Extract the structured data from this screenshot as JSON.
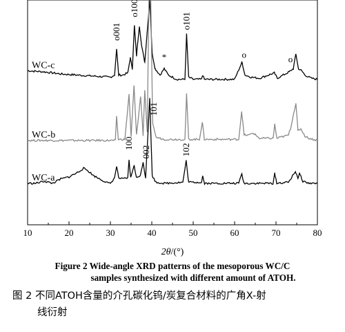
{
  "chart_data": {
    "type": "line",
    "x_axis": {
      "label_italic": "2θ",
      "label_unit": "/(°)",
      "range": [
        10,
        80
      ],
      "ticks": [
        10,
        20,
        30,
        40,
        50,
        60,
        70,
        80
      ]
    },
    "series": [
      {
        "name": "WC-c",
        "color": "#000000",
        "baseline": 6.2,
        "points": [
          [
            10,
            0.5
          ],
          [
            14,
            0.45
          ],
          [
            18,
            0.35
          ],
          [
            22,
            0.3
          ],
          [
            26,
            0.25
          ],
          [
            30,
            0.2
          ],
          [
            31,
            0.3
          ],
          [
            31.5,
            1.5
          ],
          [
            32,
            0.3
          ],
          [
            33,
            0.3
          ],
          [
            34.2,
            0.4
          ],
          [
            34.8,
            1.1
          ],
          [
            35.3,
            0.6
          ],
          [
            35.8,
            2.6
          ],
          [
            36.3,
            1.2
          ],
          [
            37,
            2.6
          ],
          [
            37.6,
            1.6
          ],
          [
            38.3,
            0.9
          ],
          [
            39.5,
            3.8
          ],
          [
            40.1,
            1.3
          ],
          [
            40.8,
            0.6
          ],
          [
            42,
            0.3
          ],
          [
            43,
            0.6
          ],
          [
            44,
            0.3
          ],
          [
            46,
            0.1
          ],
          [
            48,
            0.1
          ],
          [
            48.4,
            2.2
          ],
          [
            48.9,
            0.2
          ],
          [
            50,
            0.1
          ],
          [
            52,
            0.1
          ],
          [
            52.3,
            0.3
          ],
          [
            52.7,
            0.1
          ],
          [
            60,
            0.1
          ],
          [
            61.8,
            0.9
          ],
          [
            62.5,
            0.3
          ],
          [
            64,
            0.2
          ],
          [
            66,
            0.15
          ],
          [
            69.6,
            0.4
          ],
          [
            70.3,
            0.15
          ],
          [
            73.2,
            0.45
          ],
          [
            74.2,
            0.6
          ],
          [
            74.8,
            1.3
          ],
          [
            75.4,
            0.6
          ],
          [
            76.2,
            0.5
          ],
          [
            77,
            0.3
          ],
          [
            78.5,
            0.15
          ],
          [
            80,
            0.1
          ]
        ]
      },
      {
        "name": "WC-b",
        "color": "#888888",
        "baseline": 3.4,
        "points": [
          [
            10,
            0.05
          ],
          [
            20,
            0.05
          ],
          [
            27.5,
            0.05
          ],
          [
            30,
            0.05
          ],
          [
            31.2,
            0.05
          ],
          [
            31.5,
            1.2
          ],
          [
            31.9,
            0.1
          ],
          [
            33.5,
            0.1
          ],
          [
            34.5,
            2.2
          ],
          [
            35,
            0.2
          ],
          [
            35.7,
            2.6
          ],
          [
            36.3,
            0.3
          ],
          [
            37.3,
            2.1
          ],
          [
            37.9,
            0.3
          ],
          [
            38.3,
            2.4
          ],
          [
            38.9,
            0.4
          ],
          [
            39.5,
            9.9
          ],
          [
            40.2,
            0.9
          ],
          [
            41,
            0.2
          ],
          [
            43,
            0.1
          ],
          [
            48,
            0.1
          ],
          [
            48.4,
            2.2
          ],
          [
            48.9,
            0.1
          ],
          [
            51.5,
            0.1
          ],
          [
            52.2,
            0.9
          ],
          [
            52.7,
            0.1
          ],
          [
            61,
            0.1
          ],
          [
            61.7,
            1.4
          ],
          [
            62.3,
            0.3
          ],
          [
            63.5,
            0.3
          ],
          [
            64.5,
            0.4
          ],
          [
            66,
            0.15
          ],
          [
            69.3,
            0.15
          ],
          [
            69.7,
            0.8
          ],
          [
            70.2,
            0.15
          ],
          [
            73,
            0.3
          ],
          [
            73.5,
            0.6
          ],
          [
            74.8,
            1.8
          ],
          [
            75.3,
            0.5
          ],
          [
            76,
            0.6
          ],
          [
            77,
            0.25
          ],
          [
            78,
            0.15
          ],
          [
            80,
            0.05
          ]
        ]
      },
      {
        "name": "WC-a",
        "color": "#000000",
        "baseline": 1.4,
        "points": [
          [
            10,
            0.05
          ],
          [
            12,
            0.05
          ],
          [
            14,
            0.15
          ],
          [
            16,
            0.05
          ],
          [
            17,
            0.15
          ],
          [
            18,
            0.25
          ],
          [
            20,
            0.35
          ],
          [
            22,
            0.55
          ],
          [
            23.5,
            0.75
          ],
          [
            24.5,
            0.65
          ],
          [
            26,
            0.4
          ],
          [
            28,
            0.2
          ],
          [
            29.5,
            0.05
          ],
          [
            30,
            0.05
          ],
          [
            31,
            0.3
          ],
          [
            31.5,
            0.85
          ],
          [
            32,
            0.3
          ],
          [
            33,
            0.25
          ],
          [
            34.2,
            0.3
          ],
          [
            34.5,
            1.15
          ],
          [
            34.9,
            0.3
          ],
          [
            35.7,
            0.9
          ],
          [
            36.3,
            0.3
          ],
          [
            37.3,
            0.45
          ],
          [
            37.9,
            1.05
          ],
          [
            38.5,
            0.3
          ],
          [
            39.5,
            4.0
          ],
          [
            40.1,
            0.4
          ],
          [
            41,
            0.1
          ],
          [
            43,
            0.05
          ],
          [
            47.5,
            0.1
          ],
          [
            48.3,
            1.1
          ],
          [
            48.9,
            0.1
          ],
          [
            52,
            0.1
          ],
          [
            52.3,
            0.4
          ],
          [
            52.7,
            0.05
          ],
          [
            61,
            0.05
          ],
          [
            61.7,
            0.5
          ],
          [
            62.3,
            0.05
          ],
          [
            69.3,
            0.05
          ],
          [
            69.7,
            0.5
          ],
          [
            70.2,
            0.05
          ],
          [
            73,
            0.1
          ],
          [
            74.7,
            0.6
          ],
          [
            75.3,
            0.3
          ],
          [
            75.7,
            0.5
          ],
          [
            76.5,
            0.15
          ],
          [
            78,
            0.05
          ],
          [
            80,
            0.05
          ]
        ]
      }
    ],
    "annotations": [
      {
        "text": "o001",
        "rotated": true,
        "x": 31.5,
        "y": 8.1
      },
      {
        "text": "o100",
        "rotated": true,
        "x": 35.8,
        "y": 9.2
      },
      {
        "text": "o101",
        "rotated": true,
        "x": 48.4,
        "y": 8.6
      },
      {
        "text": "*",
        "rotated": false,
        "x": 43.0,
        "y": 7.2
      },
      {
        "text": "o",
        "rotated": false,
        "x": 62.3,
        "y": 7.3
      },
      {
        "text": "o",
        "rotated": false,
        "x": 73.5,
        "y": 7.1
      },
      {
        "text": "101",
        "rotated": true,
        "x": 40.5,
        "y": 4.6
      },
      {
        "text": "100",
        "rotated": true,
        "x": 34.5,
        "y": 3.0
      },
      {
        "text": "002",
        "rotated": true,
        "x": 38.7,
        "y": 2.6
      },
      {
        "text": "102",
        "rotated": true,
        "x": 48.3,
        "y": 2.7
      }
    ]
  },
  "caption": {
    "en_line1": "Figure 2   Wide-angle XRD patterns of the mesoporous WC/C",
    "en_line2": "samples synthesized with different amount of ATOH.",
    "zh_line1": "图 2   不同ATOH含量的介孔碳化钨/炭复合材料的广角X-射",
    "zh_line2": "线衍射"
  }
}
